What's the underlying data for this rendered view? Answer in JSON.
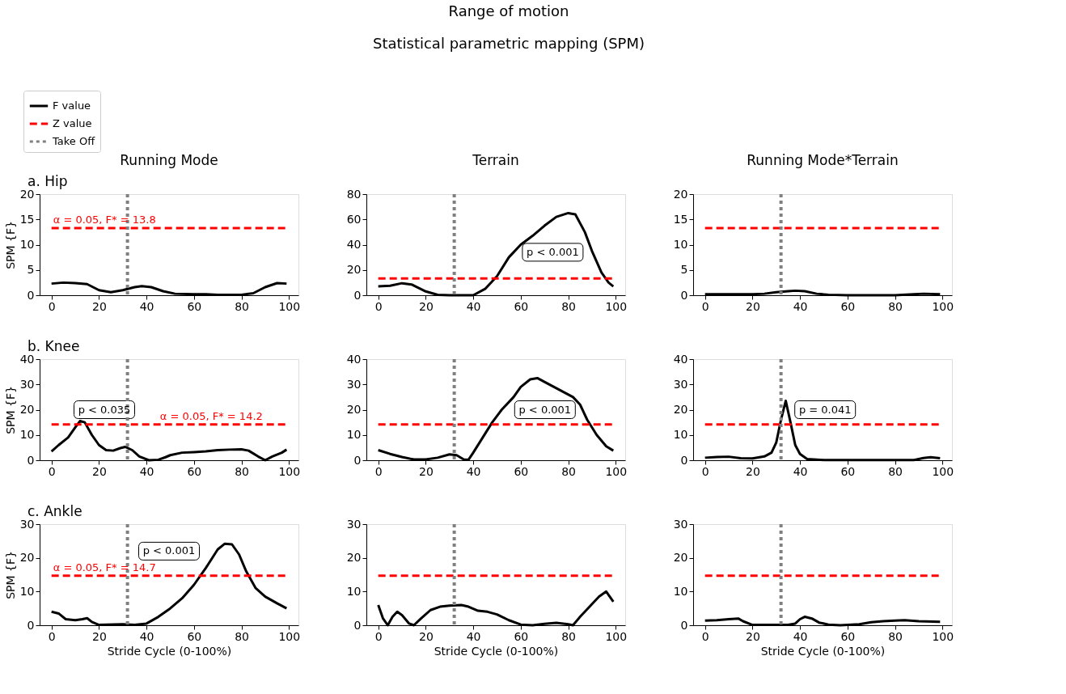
{
  "chart_data": [
    {
      "type": "other",
      "title": "Range of motion",
      "subtitle": "Statistical parametric mapping (SPM)"
    },
    {
      "type": "line",
      "title": "Running Mode",
      "ylabel": "SPM {F}",
      "legend": "top left",
      "xlim": [
        -5,
        104
      ],
      "xticks": [
        0,
        20,
        40,
        60,
        80,
        100
      ],
      "ylim": [
        0,
        20
      ],
      "yticks": [
        0,
        5,
        10,
        15,
        20
      ],
      "annotations": [
        "a. Hip"
      ],
      "series": [
        {
          "name": "F value",
          "color": "#000000",
          "x": [
            0,
            5,
            10,
            15,
            20,
            25,
            30,
            35,
            38,
            42,
            47,
            52,
            60,
            65,
            70,
            75,
            80,
            85,
            90,
            95,
            99
          ],
          "values": [
            2.3,
            2.5,
            2.4,
            2.2,
            1.0,
            0.6,
            1.0,
            1.6,
            1.8,
            1.6,
            0.8,
            0.3,
            0.2,
            0.2,
            0.1,
            0.1,
            0.1,
            0.4,
            1.6,
            2.4,
            2.3
          ]
        },
        {
          "name": "Z value",
          "color": "#ff0000",
          "line_style": "dashed",
          "x": [
            0,
            99
          ],
          "values": [
            13.3,
            13.3
          ],
          "value_labels": [
            "α = 0.05, F* = 13.8",
            null
          ]
        }
      ],
      "ref_lines": [
        {
          "axis": "x",
          "value": 32,
          "label": "Take Off",
          "color": "#808080",
          "line_style": "dotted"
        }
      ]
    },
    {
      "type": "line",
      "title": "Terrain",
      "xlim": [
        -5,
        104
      ],
      "xticks": [
        0,
        20,
        40,
        60,
        80,
        100
      ],
      "ylim": [
        0,
        80
      ],
      "yticks": [
        0,
        20,
        40,
        60,
        80
      ],
      "annotations": [
        "p < 0.001"
      ],
      "series": [
        {
          "color": "#000000",
          "x": [
            0,
            5,
            10,
            14,
            20,
            25,
            30,
            40,
            45,
            50,
            55,
            60,
            65,
            70,
            75,
            80,
            83,
            87,
            90,
            94,
            97,
            99
          ],
          "values": [
            7,
            7.5,
            9.5,
            8.5,
            3,
            0.3,
            0,
            0,
            5,
            15,
            30,
            40,
            47,
            55,
            62,
            65,
            64,
            50,
            35,
            18,
            10,
            7
          ]
        },
        {
          "color": "#ff0000",
          "line_style": "dashed",
          "x": [
            0,
            99
          ],
          "values": [
            13.3,
            13.3
          ]
        }
      ],
      "ref_lines": [
        {
          "axis": "x",
          "value": 32,
          "color": "#808080",
          "line_style": "dotted"
        }
      ]
    },
    {
      "type": "line",
      "title": "Running Mode*Terrain",
      "xlim": [
        -5,
        104
      ],
      "xticks": [
        0,
        20,
        40,
        60,
        80,
        100
      ],
      "ylim": [
        0,
        20
      ],
      "yticks": [
        0,
        5,
        10,
        15,
        20
      ],
      "series": [
        {
          "color": "#000000",
          "x": [
            0,
            10,
            20,
            25,
            30,
            35,
            38,
            42,
            47,
            52,
            60,
            80,
            88,
            92,
            99
          ],
          "values": [
            0.2,
            0.2,
            0.2,
            0.3,
            0.6,
            0.8,
            0.9,
            0.8,
            0.3,
            0.1,
            0,
            0,
            0.2,
            0.3,
            0.2
          ]
        },
        {
          "color": "#ff0000",
          "line_style": "dashed",
          "x": [
            0,
            99
          ],
          "values": [
            13.3,
            13.3
          ]
        }
      ],
      "ref_lines": [
        {
          "axis": "x",
          "value": 32,
          "color": "#808080",
          "line_style": "dotted"
        }
      ]
    },
    {
      "type": "line",
      "ylabel": "SPM {F}",
      "xlim": [
        -5,
        104
      ],
      "xticks": [
        0,
        20,
        40,
        60,
        80,
        100
      ],
      "ylim": [
        0,
        40
      ],
      "yticks": [
        0,
        10,
        20,
        30,
        40
      ],
      "annotations": [
        "b. Knee",
        "p < 0.035"
      ],
      "series": [
        {
          "color": "#000000",
          "x": [
            0,
            3,
            7,
            10,
            12,
            14,
            17,
            20,
            23,
            26,
            29,
            31,
            34,
            37,
            41,
            45,
            48,
            50,
            55,
            60,
            65,
            70,
            75,
            80,
            83,
            87,
            90,
            93,
            97,
            99
          ],
          "values": [
            3.5,
            6,
            9,
            13,
            15.5,
            15,
            10,
            6,
            4,
            3.8,
            4.8,
            5.3,
            4,
            1.5,
            0,
            0.2,
            1.2,
            2,
            3,
            3.2,
            3.5,
            4,
            4.2,
            4.3,
            3.8,
            1.5,
            0,
            1.5,
            3,
            4.2
          ]
        },
        {
          "color": "#ff0000",
          "line_style": "dashed",
          "x": [
            0,
            45,
            99
          ],
          "values": [
            14.2,
            14.2,
            14.2
          ],
          "value_labels": [
            null,
            "α = 0.05, F* = 14.2",
            null
          ]
        }
      ],
      "ref_lines": [
        {
          "axis": "x",
          "value": 32,
          "color": "#808080",
          "line_style": "dotted"
        }
      ]
    },
    {
      "type": "line",
      "xlim": [
        -5,
        104
      ],
      "xticks": [
        0,
        20,
        40,
        60,
        80,
        100
      ],
      "ylim": [
        0,
        40
      ],
      "yticks": [
        0,
        10,
        20,
        30,
        40
      ],
      "annotations": [
        "p < 0.001"
      ],
      "series": [
        {
          "color": "#000000",
          "x": [
            0,
            5,
            10,
            15,
            20,
            25,
            30,
            33,
            36,
            38,
            40,
            44,
            48,
            52,
            57,
            60,
            64,
            67,
            70,
            74,
            78,
            82,
            85,
            88,
            92,
            96,
            99
          ],
          "values": [
            4,
            2.5,
            1.3,
            0.3,
            0.3,
            1,
            2.3,
            2,
            0.3,
            0.2,
            3,
            9,
            15,
            20,
            25,
            29,
            32,
            32.5,
            31,
            29,
            27,
            25,
            22,
            16,
            10,
            5.5,
            3.8
          ]
        },
        {
          "color": "#ff0000",
          "line_style": "dashed",
          "x": [
            0,
            99
          ],
          "values": [
            14.2,
            14.2
          ]
        }
      ],
      "ref_lines": [
        {
          "axis": "x",
          "value": 32,
          "color": "#808080",
          "line_style": "dotted"
        }
      ]
    },
    {
      "type": "line",
      "xlim": [
        -5,
        104
      ],
      "xticks": [
        0,
        20,
        40,
        60,
        80,
        100
      ],
      "ylim": [
        0,
        40
      ],
      "yticks": [
        0,
        10,
        20,
        30,
        40
      ],
      "annotations": [
        "p = 0.041"
      ],
      "series": [
        {
          "color": "#000000",
          "x": [
            0,
            5,
            10,
            15,
            20,
            25,
            28,
            30,
            32,
            34,
            36,
            38,
            40,
            43,
            50,
            70,
            88,
            92,
            95,
            99
          ],
          "values": [
            1,
            1.3,
            1.4,
            0.8,
            0.7,
            1.5,
            3,
            7,
            16,
            23.5,
            15,
            6,
            2.5,
            0.5,
            0.1,
            0.1,
            0.1,
            0.9,
            1.2,
            0.8
          ]
        },
        {
          "color": "#ff0000",
          "line_style": "dashed",
          "x": [
            0,
            99
          ],
          "values": [
            14.2,
            14.2
          ]
        }
      ],
      "ref_lines": [
        {
          "axis": "x",
          "value": 32,
          "color": "#808080",
          "line_style": "dotted"
        }
      ]
    },
    {
      "type": "line",
      "ylabel": "SPM {F}",
      "xlabel": "Stride Cycle (0-100%)",
      "xlim": [
        -5,
        104
      ],
      "xticks": [
        0,
        20,
        40,
        60,
        80,
        100
      ],
      "ylim": [
        0,
        30
      ],
      "yticks": [
        0,
        10,
        20,
        30
      ],
      "annotations": [
        "c. Ankle",
        "p < 0.001"
      ],
      "series": [
        {
          "color": "#000000",
          "x": [
            0,
            3,
            6,
            10,
            13,
            15,
            17,
            20,
            30,
            35,
            40,
            45,
            50,
            55,
            60,
            65,
            70,
            73,
            76,
            79,
            82,
            86,
            90,
            95,
            99
          ],
          "values": [
            4,
            3.5,
            1.8,
            1.5,
            1.8,
            2.1,
            1,
            0.1,
            0.3,
            0.1,
            0.5,
            2.5,
            5,
            8,
            12,
            17,
            22.5,
            24.2,
            24,
            21,
            16,
            11,
            8.5,
            6.5,
            5
          ]
        },
        {
          "color": "#ff0000",
          "line_style": "dashed",
          "x": [
            0,
            99
          ],
          "values": [
            14.7,
            14.7
          ],
          "value_labels": [
            "α = 0.05, F* = 14.7",
            null
          ]
        }
      ],
      "ref_lines": [
        {
          "axis": "x",
          "value": 32,
          "color": "#808080",
          "line_style": "dotted"
        }
      ]
    },
    {
      "type": "line",
      "xlabel": "Stride Cycle (0-100%)",
      "xlim": [
        -5,
        104
      ],
      "xticks": [
        0,
        20,
        40,
        60,
        80,
        100
      ],
      "ylim": [
        0,
        30
      ],
      "yticks": [
        0,
        10,
        20,
        30
      ],
      "series": [
        {
          "color": "#000000",
          "x": [
            0,
            2,
            4,
            6,
            8,
            10,
            13,
            15,
            18,
            22,
            26,
            30,
            35,
            38,
            42,
            46,
            50,
            55,
            60,
            65,
            70,
            75,
            80,
            82,
            85,
            89,
            93,
            96,
            99
          ],
          "values": [
            6,
            2,
            0,
            2.5,
            4,
            3,
            0.5,
            0,
            2,
            4.5,
            5.5,
            5.8,
            6,
            5.5,
            4.3,
            4,
            3.2,
            1.5,
            0.2,
            0,
            0.4,
            0.7,
            0.3,
            0,
            2.5,
            5.5,
            8.5,
            10,
            7
          ]
        },
        {
          "color": "#ff0000",
          "line_style": "dashed",
          "x": [
            0,
            99
          ],
          "values": [
            14.7,
            14.7
          ]
        }
      ],
      "ref_lines": [
        {
          "axis": "x",
          "value": 32,
          "color": "#808080",
          "line_style": "dotted"
        }
      ]
    },
    {
      "type": "line",
      "xlabel": "Stride Cycle (0-100%)",
      "xlim": [
        -5,
        104
      ],
      "xticks": [
        0,
        20,
        40,
        60,
        80,
        100
      ],
      "ylim": [
        0,
        30
      ],
      "yticks": [
        0,
        10,
        20,
        30
      ],
      "series": [
        {
          "color": "#000000",
          "x": [
            0,
            5,
            10,
            14,
            16,
            20,
            30,
            35,
            38,
            40,
            42,
            45,
            48,
            52,
            57,
            65,
            70,
            75,
            80,
            84,
            90,
            99
          ],
          "values": [
            1.4,
            1.5,
            1.8,
            2,
            1.2,
            0.1,
            0.1,
            0.1,
            0.5,
            1.8,
            2.5,
            2,
            0.8,
            0.2,
            0,
            0.3,
            0.9,
            1.2,
            1.4,
            1.5,
            1.2,
            1
          ]
        },
        {
          "color": "#ff0000",
          "line_style": "dashed",
          "x": [
            0,
            99
          ],
          "values": [
            14.7,
            14.7
          ]
        }
      ],
      "ref_lines": [
        {
          "axis": "x",
          "value": 32,
          "color": "#808080",
          "line_style": "dotted"
        }
      ]
    }
  ]
}
